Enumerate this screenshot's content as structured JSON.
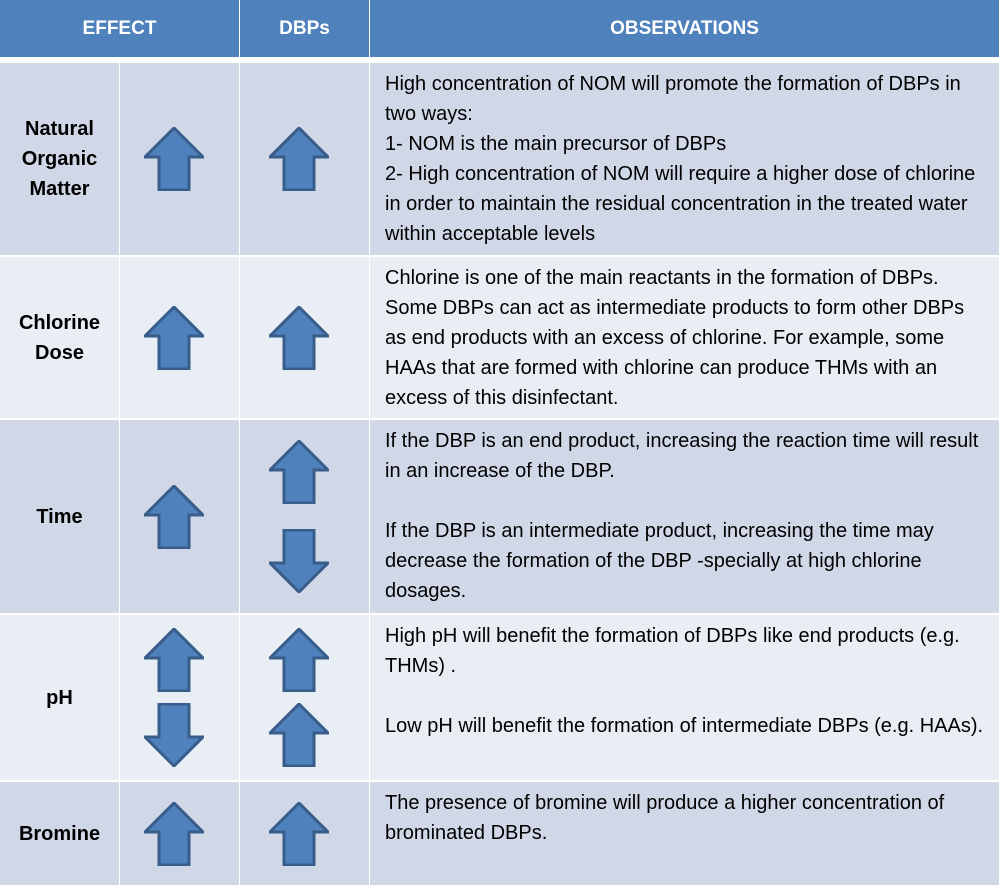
{
  "header": {
    "effect": "EFFECT",
    "dbps": "DBPs",
    "observations": "OBSERVATIONS"
  },
  "colors": {
    "header": "#4f81bd",
    "row_dark": "#d0d8e8",
    "row_light": "#e9edf4",
    "arrow_fill": "#4f81bd",
    "arrow_stroke": "#385d8a"
  },
  "rows": [
    {
      "label": "Natural Organic Matter",
      "effect": [
        "up"
      ],
      "dbps": [
        "up"
      ],
      "observation": "High concentration of NOM will promote the formation of DBPs in two ways:\n1- NOM is the main precursor of DBPs\n2- High concentration of NOM will require a higher dose of chlorine in order to maintain the residual concentration in the treated water within acceptable levels"
    },
    {
      "label": "Chlorine Dose",
      "effect": [
        "up"
      ],
      "dbps": [
        "up"
      ],
      "observation": "Chlorine is one of the main reactants in the formation of DBPs. Some DBPs can act as intermediate products to form other DBPs as end products with an excess of chlorine. For example, some HAAs that are formed with chlorine can produce THMs with an excess of this disinfectant."
    },
    {
      "label": "Time",
      "effect": [
        "up"
      ],
      "dbps": [
        "up",
        "down"
      ],
      "observation": "If the DBP is an end product, increasing the reaction time will result in an increase of the DBP.\n\nIf the DBP is an intermediate product, increasing the time may decrease the formation of the DBP -specially at high chlorine dosages."
    },
    {
      "label": "pH",
      "effect": [
        "up",
        "down"
      ],
      "dbps": [
        "up",
        "up"
      ],
      "observation": "High pH will benefit the formation of DBPs like end products (e.g. THMs) .\n\nLow pH will benefit the formation of intermediate DBPs (e.g. HAAs)."
    },
    {
      "label": "Bromine",
      "effect": [
        "up"
      ],
      "dbps": [
        "up"
      ],
      "observation": "The presence of bromine will produce a higher concentration of brominated DBPs."
    }
  ]
}
